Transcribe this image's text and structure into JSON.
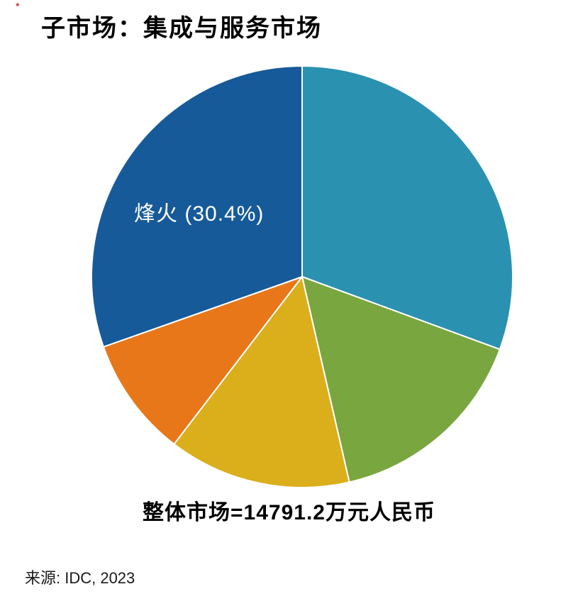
{
  "page": {
    "corner_mark": "*"
  },
  "chart_data": {
    "type": "pie",
    "title": "子市场：集成与服务市场",
    "caption": "整体市场=14791.2万元人民币",
    "total_market": {
      "value": 14791.2,
      "unit": "万元人民币"
    },
    "values_are": "percent market share",
    "start_angle_deg": 0,
    "direction": "clockwise",
    "legend_position": "none",
    "slices": [
      {
        "id": "teal",
        "name": "",
        "value": 30.6,
        "color": "#2B91B0",
        "label": ""
      },
      {
        "id": "green",
        "name": "",
        "value": 15.8,
        "color": "#79A63F",
        "label": ""
      },
      {
        "id": "yellow",
        "name": "",
        "value": 14.0,
        "color": "#DBAE1C",
        "label": ""
      },
      {
        "id": "orange",
        "name": "",
        "value": 9.2,
        "color": "#E8771A",
        "label": ""
      },
      {
        "id": "fenghuo",
        "name": "烽火",
        "value": 30.4,
        "color": "#175A99",
        "label": "烽火 (30.4%)"
      }
    ]
  },
  "source": {
    "text": "来源: IDC, 2023"
  }
}
